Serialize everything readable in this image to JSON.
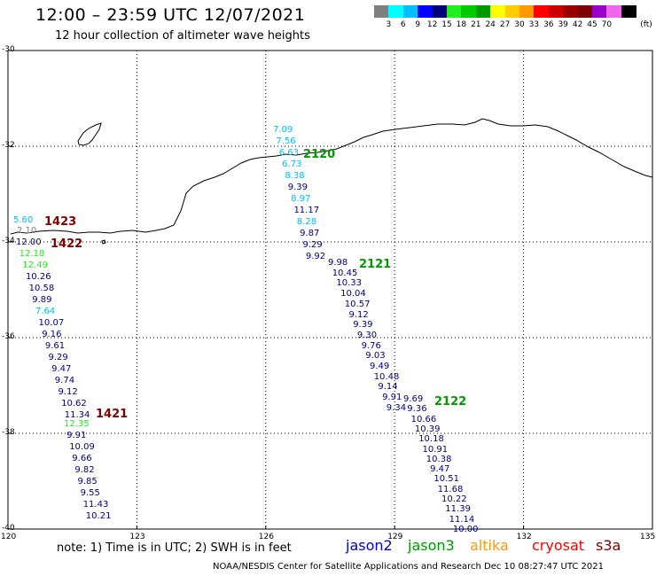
{
  "header": {
    "title": "12:00 – 23:59 UTC 12/07/2021",
    "subtitle": "12 hour collection of altimeter wave heights"
  },
  "legend": {
    "colors": [
      "#7f7f7f",
      "#00ffff",
      "#00bfff",
      "#0000ff",
      "#00007f",
      "#1fef1f",
      "#00cc00",
      "#009900",
      "#ffff00",
      "#ffcc00",
      "#ff9900",
      "#ff0000",
      "#cc0000",
      "#990000",
      "#7f0000",
      "#9900cc",
      "#ee66ee",
      "#000000"
    ],
    "labels": [
      "3",
      "6",
      "9",
      "12",
      "15",
      "18",
      "21",
      "24",
      "27",
      "30",
      "33",
      "36",
      "39",
      "42",
      "45",
      "70"
    ],
    "unit": "(ft)"
  },
  "axes": {
    "lat_labels": [
      "-30",
      "-32",
      "-34",
      "-36",
      "-38",
      "-40"
    ],
    "lon_labels": [
      "120",
      "123",
      "126",
      "129",
      "132",
      "135"
    ]
  },
  "tracks": [
    {
      "cycle": "1423",
      "cycle_color": "#7f0000",
      "values": [
        {
          "v": "5.60",
          "c": "#00bfff"
        },
        {
          "v": "2.10",
          "c": "#7f7f7f"
        }
      ]
    },
    {
      "cycle": "1422",
      "cycle_color": "#7f0000",
      "values": [
        {
          "v": "12.00",
          "c": "#00007f"
        },
        {
          "v": "12.18",
          "c": "#1fef1f"
        },
        {
          "v": "12.49",
          "c": "#1fef1f"
        },
        {
          "v": "10.26",
          "c": "#00007f"
        },
        {
          "v": "10.58",
          "c": "#00007f"
        },
        {
          "v": "9.89",
          "c": "#00007f"
        },
        {
          "v": "7.64",
          "c": "#00bfff"
        },
        {
          "v": "10.07",
          "c": "#00007f"
        },
        {
          "v": "9.16",
          "c": "#00007f"
        },
        {
          "v": "9.61",
          "c": "#00007f"
        },
        {
          "v": "9.29",
          "c": "#00007f"
        },
        {
          "v": "9.47",
          "c": "#00007f"
        },
        {
          "v": "9.74",
          "c": "#00007f"
        },
        {
          "v": "9.12",
          "c": "#00007f"
        },
        {
          "v": "10.62",
          "c": "#00007f"
        },
        {
          "v": "11.34",
          "c": "#00007f"
        }
      ]
    },
    {
      "cycle": "1421",
      "cycle_color": "#7f0000",
      "values": [
        {
          "v": "12.35",
          "c": "#1fef1f"
        },
        {
          "v": "9.91",
          "c": "#00007f"
        },
        {
          "v": "10.09",
          "c": "#00007f"
        },
        {
          "v": "9.66",
          "c": "#00007f"
        },
        {
          "v": "9.82",
          "c": "#00007f"
        },
        {
          "v": "9.85",
          "c": "#00007f"
        },
        {
          "v": "9.55",
          "c": "#00007f"
        },
        {
          "v": "11.43",
          "c": "#00007f"
        },
        {
          "v": "10.21",
          "c": "#00007f"
        }
      ]
    },
    {
      "cycle": "2120",
      "cycle_color": "#009900",
      "values": [
        {
          "v": "7.09",
          "c": "#00bfff"
        },
        {
          "v": "7.56",
          "c": "#00bfff"
        },
        {
          "v": "6.63",
          "c": "#00bfff"
        },
        {
          "v": "6.73",
          "c": "#00bfff"
        },
        {
          "v": "8.38",
          "c": "#00bfff"
        },
        {
          "v": "9.39",
          "c": "#00007f"
        },
        {
          "v": "8.97",
          "c": "#00bfff"
        },
        {
          "v": "11.17",
          "c": "#00007f"
        },
        {
          "v": "8.28",
          "c": "#00bfff"
        },
        {
          "v": "9.87",
          "c": "#00007f"
        },
        {
          "v": "9.29",
          "c": "#00007f"
        },
        {
          "v": "9.92",
          "c": "#00007f"
        }
      ]
    },
    {
      "cycle": "2121",
      "cycle_color": "#009900",
      "values": [
        {
          "v": "9.98",
          "c": "#00007f"
        },
        {
          "v": "10.45",
          "c": "#00007f"
        },
        {
          "v": "10.33",
          "c": "#00007f"
        },
        {
          "v": "10.04",
          "c": "#00007f"
        },
        {
          "v": "10.57",
          "c": "#00007f"
        },
        {
          "v": "9.12",
          "c": "#00007f"
        },
        {
          "v": "9.39",
          "c": "#00007f"
        },
        {
          "v": "9.30",
          "c": "#00007f"
        },
        {
          "v": "9.76",
          "c": "#00007f"
        },
        {
          "v": "9.03",
          "c": "#00007f"
        },
        {
          "v": "9.49",
          "c": "#00007f"
        },
        {
          "v": "10.48",
          "c": "#00007f"
        },
        {
          "v": "9.14",
          "c": "#00007f"
        },
        {
          "v": "9.91",
          "c": "#00007f"
        },
        {
          "v": "9.34",
          "c": "#00007f"
        }
      ]
    },
    {
      "cycle": "2122",
      "cycle_color": "#009900",
      "values": [
        {
          "v": "9.69",
          "c": "#00007f"
        },
        {
          "v": "9.36",
          "c": "#00007f"
        },
        {
          "v": "10.66",
          "c": "#00007f"
        },
        {
          "v": "10.39",
          "c": "#00007f"
        },
        {
          "v": "10.18",
          "c": "#00007f"
        },
        {
          "v": "10.91",
          "c": "#00007f"
        },
        {
          "v": "10.38",
          "c": "#00007f"
        },
        {
          "v": "9.47",
          "c": "#00007f"
        },
        {
          "v": "10.51",
          "c": "#00007f"
        },
        {
          "v": "11.68",
          "c": "#00007f"
        },
        {
          "v": "10.22",
          "c": "#00007f"
        },
        {
          "v": "11.39",
          "c": "#00007f"
        },
        {
          "v": "11.14",
          "c": "#00007f"
        },
        {
          "v": "10.00",
          "c": "#00007f"
        }
      ]
    }
  ],
  "note": "note:  1) Time is in UTC;  2) SWH is in feet",
  "satellites": [
    {
      "name": "jason2",
      "color": "#0000cc"
    },
    {
      "name": "jason3",
      "color": "#009900"
    },
    {
      "name": "altika",
      "color": "#ff9900"
    },
    {
      "name": "cryosat",
      "color": "#ff0000"
    },
    {
      "name": "s3a",
      "color": "#7f0000"
    }
  ],
  "footer": "NOAA/NESDIS Center for Satellite Applications and Research     Dec 10 08:27:47 UTC 2021"
}
